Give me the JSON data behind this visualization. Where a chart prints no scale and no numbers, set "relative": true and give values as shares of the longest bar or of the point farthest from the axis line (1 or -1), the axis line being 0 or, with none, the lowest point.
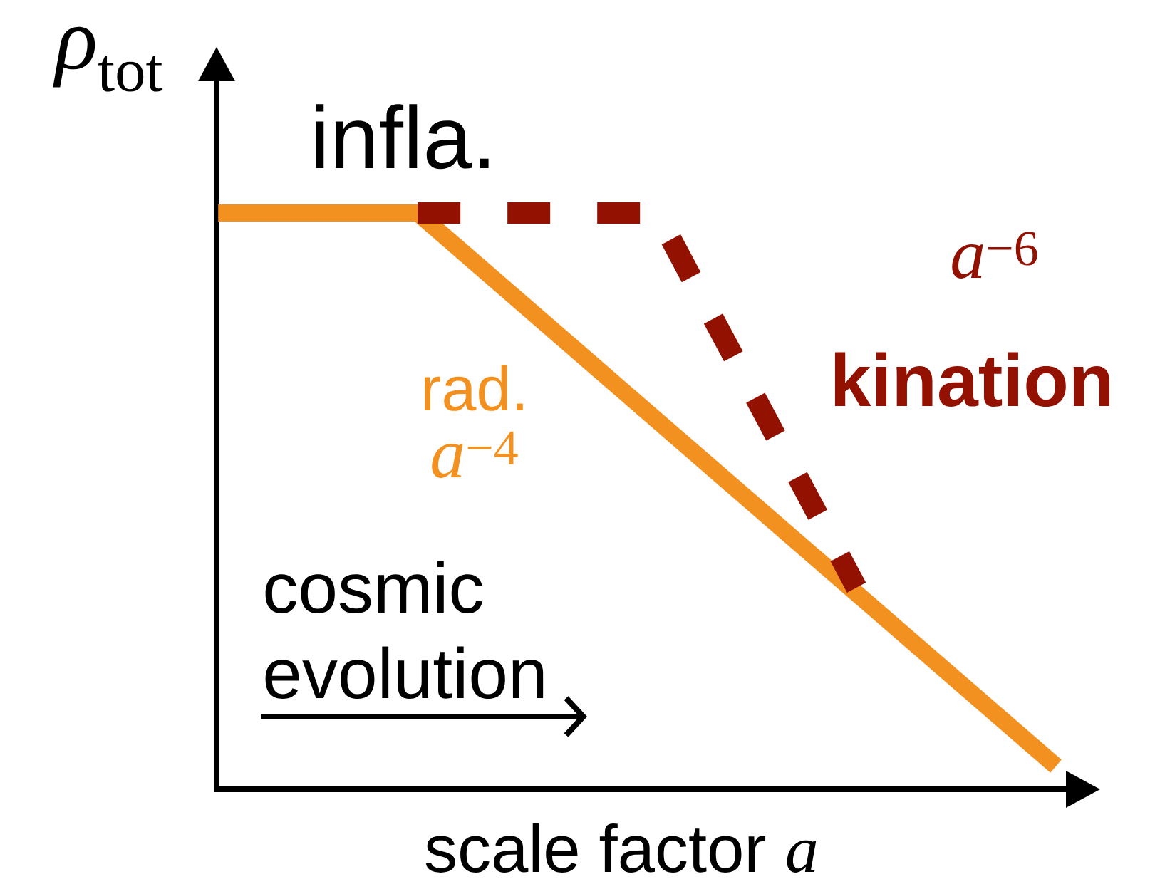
{
  "chart_data": {
    "type": "line",
    "relative": true,
    "ylabel": "*ρ*$_{tot}$",
    "xlabel": "scale factor *a*",
    "categories": [
      null,
      null,
      null,
      null,
      null,
      null,
      null,
      null,
      null,
      null,
      null,
      null,
      null,
      null,
      null,
      null,
      null,
      null,
      null,
      null,
      null,
      null
    ],
    "series": [
      {
        "name": "rad.",
        "color": "#f29120",
        "line_style": "solid",
        "values": [
          1,
          1,
          1,
          1,
          1,
          1,
          0.94,
          0.88,
          0.82,
          0.76,
          0.7,
          0.64,
          0.58,
          0.52,
          0.46,
          0.4,
          0.34,
          0.28,
          0.22,
          0.16,
          0.1,
          0.04
        ]
      },
      {
        "name": "kination",
        "color": "#931100",
        "line_style": "dashed",
        "values": [
          null,
          null,
          null,
          null,
          null,
          1,
          1,
          1,
          1,
          1,
          1,
          1,
          0.87,
          0.74,
          0.61,
          0.48,
          0.35,
          null,
          null,
          null,
          null,
          null
        ]
      }
    ],
    "annotations": [
      "infla.",
      "*a*$^{−4}$",
      "*a*$^{−6}$",
      "cosmic evolution"
    ]
  }
}
